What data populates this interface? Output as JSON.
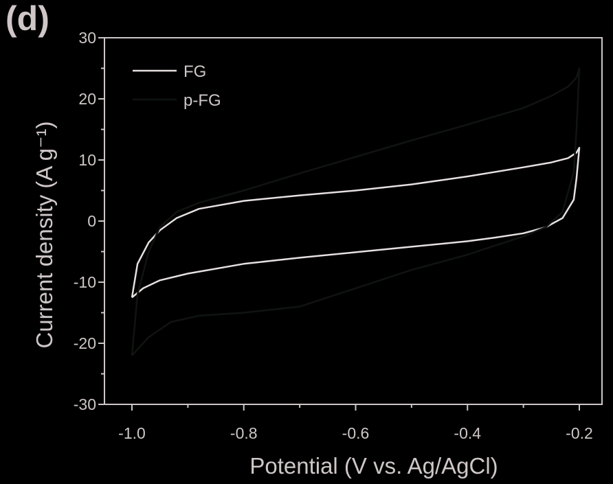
{
  "panel_label": "(d)",
  "colors": {
    "background": "#000000",
    "axis": "#cfc7c7",
    "FG": "#e6e0e0",
    "p-FG": "#101410"
  },
  "chart_data": {
    "type": "line",
    "title": "",
    "xlabel": "Potential (V vs. Ag/AgCl)",
    "ylabel": "Current density (A g⁻¹)",
    "xlim": [
      -1.0,
      -0.2
    ],
    "ylim": [
      -30,
      30
    ],
    "xticks": [
      -1.0,
      -0.8,
      -0.6,
      -0.4,
      -0.2
    ],
    "xtick_labels": [
      "-1.0",
      "-0.8",
      "-0.6",
      "-0.4",
      "-0.2"
    ],
    "yticks": [
      -30,
      -20,
      -10,
      0,
      10,
      20,
      30
    ],
    "ytick_labels": [
      "-30",
      "-20",
      "-10",
      "0",
      "10",
      "20",
      "30"
    ],
    "grid": false,
    "legend": "top-left",
    "series": [
      {
        "name": "FG",
        "x": [
          -1.0,
          -0.99,
          -0.97,
          -0.95,
          -0.92,
          -0.88,
          -0.8,
          -0.7,
          -0.6,
          -0.5,
          -0.4,
          -0.3,
          -0.25,
          -0.22,
          -0.205,
          -0.2,
          -0.205,
          -0.21,
          -0.23,
          -0.26,
          -0.3,
          -0.35,
          -0.4,
          -0.5,
          -0.6,
          -0.7,
          -0.8,
          -0.9,
          -0.95,
          -0.98,
          -1.0
        ],
        "y": [
          -12.5,
          -7.0,
          -3.5,
          -1.5,
          0.5,
          2.0,
          3.3,
          4.2,
          5.0,
          6.0,
          7.3,
          8.8,
          9.6,
          10.3,
          11.2,
          12.0,
          7.0,
          3.5,
          0.5,
          -1.0,
          -2.0,
          -2.7,
          -3.3,
          -4.2,
          -5.1,
          -6.0,
          -7.0,
          -8.6,
          -9.7,
          -11.0,
          -12.5
        ]
      },
      {
        "name": "p-FG",
        "x": [
          -1.0,
          -0.99,
          -0.97,
          -0.95,
          -0.92,
          -0.88,
          -0.8,
          -0.7,
          -0.6,
          -0.5,
          -0.4,
          -0.3,
          -0.25,
          -0.22,
          -0.205,
          -0.2,
          -0.205,
          -0.21,
          -0.23,
          -0.26,
          -0.3,
          -0.35,
          -0.4,
          -0.5,
          -0.6,
          -0.7,
          -0.8,
          -0.88,
          -0.93,
          -0.97,
          -1.0
        ],
        "y": [
          -22.0,
          -12.0,
          -5.0,
          -1.0,
          1.5,
          3.0,
          5.0,
          7.8,
          10.5,
          13.2,
          15.8,
          18.5,
          20.5,
          22.0,
          23.5,
          25.0,
          15.0,
          8.0,
          1.5,
          -1.0,
          -2.5,
          -4.0,
          -5.5,
          -8.0,
          -11.0,
          -14.0,
          -15.0,
          -15.5,
          -16.5,
          -19.0,
          -22.0
        ]
      }
    ]
  }
}
